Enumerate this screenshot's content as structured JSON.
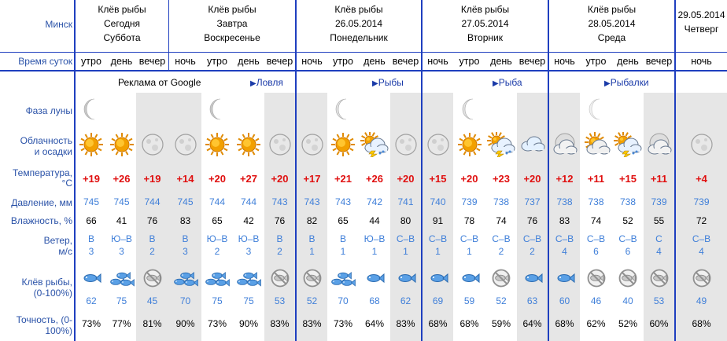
{
  "row_labels": {
    "city": "Минск",
    "time_of_day": "Время суток",
    "moon": "Фаза луны",
    "clouds_l1": "Облачность",
    "clouds_l2": "и осадки",
    "temp_l1": "Температура,",
    "temp_l2": "°C",
    "pressure": "Давление, мм",
    "humidity": "Влажность, %",
    "wind_l1": "Ветер,",
    "wind_l2": "м/с",
    "bite_l1": "Клёв рыбы,",
    "bite_l2": "(0-100%)",
    "acc_l1": "Точность, (0-",
    "acc_l2": "100%)"
  },
  "days": [
    {
      "l1": "Клёв рыбы",
      "l2": "Сегодня",
      "l3": "Суббота"
    },
    {
      "l1": "Клёв рыбы",
      "l2": "Завтра",
      "l3": "Воскресенье"
    },
    {
      "l1": "Клёв рыбы",
      "l2": "26.05.2014",
      "l3": "Понедельник"
    },
    {
      "l1": "Клёв рыбы",
      "l2": "27.05.2014",
      "l3": "Вторник"
    },
    {
      "l1": "Клёв рыбы",
      "l2": "28.05.2014",
      "l3": "Среда"
    },
    {
      "l1": "29.05.2014",
      "l2": "Четверг",
      "l3": ""
    }
  ],
  "ads": {
    "google": "Реклама от Google",
    "link1": "Ловля",
    "link2": "Рыбы",
    "link3": "Рыба",
    "link4": "Рыбалки"
  },
  "colors": {
    "label_blue": "#2a52a8",
    "grid_blue": "#1f3fbf",
    "temp_red": "#e01010",
    "pressure_blue": "#3f7fd9",
    "grey_column": "#e6e6e6"
  },
  "columns": [
    {
      "time": "утро",
      "weather": "sun",
      "temp": "+19",
      "pressure": "745",
      "humidity": "66",
      "wind_dir": "В",
      "wind_speed": "3",
      "fish": "one",
      "bite": "62",
      "acc": "73%",
      "moon": "crescent"
    },
    {
      "time": "день",
      "weather": "sun",
      "temp": "+26",
      "pressure": "745",
      "humidity": "41",
      "wind_dir": "Ю–В",
      "wind_speed": "3",
      "fish": "three",
      "bite": "75",
      "acc": "77%",
      "moon": ""
    },
    {
      "time": "вечер",
      "weather": "moon",
      "temp": "+19",
      "pressure": "744",
      "humidity": "76",
      "wind_dir": "В",
      "wind_speed": "2",
      "fish": "none",
      "bite": "45",
      "acc": "81%",
      "moon": ""
    },
    {
      "time": "ночь",
      "weather": "moon",
      "temp": "+14",
      "pressure": "745",
      "humidity": "83",
      "wind_dir": "В",
      "wind_speed": "3",
      "fish": "three",
      "bite": "70",
      "acc": "90%",
      "moon": ""
    },
    {
      "time": "утро",
      "weather": "sun",
      "temp": "+20",
      "pressure": "744",
      "humidity": "65",
      "wind_dir": "Ю–В",
      "wind_speed": "2",
      "fish": "three",
      "bite": "75",
      "acc": "73%",
      "moon": "crescent"
    },
    {
      "time": "день",
      "weather": "sun",
      "temp": "+27",
      "pressure": "744",
      "humidity": "42",
      "wind_dir": "Ю–В",
      "wind_speed": "3",
      "fish": "three",
      "bite": "75",
      "acc": "90%",
      "moon": ""
    },
    {
      "time": "вечер",
      "weather": "moon",
      "temp": "+20",
      "pressure": "743",
      "humidity": "76",
      "wind_dir": "В",
      "wind_speed": "2",
      "fish": "none",
      "bite": "53",
      "acc": "83%",
      "moon": ""
    },
    {
      "time": "ночь",
      "weather": "moon",
      "temp": "+17",
      "pressure": "743",
      "humidity": "82",
      "wind_dir": "В",
      "wind_speed": "1",
      "fish": "none",
      "bite": "52",
      "acc": "83%",
      "moon": ""
    },
    {
      "time": "утро",
      "weather": "sun",
      "temp": "+21",
      "pressure": "743",
      "humidity": "65",
      "wind_dir": "В",
      "wind_speed": "1",
      "fish": "three",
      "bite": "70",
      "acc": "73%",
      "moon": "thin"
    },
    {
      "time": "день",
      "weather": "storm",
      "temp": "+26",
      "pressure": "742",
      "humidity": "44",
      "wind_dir": "Ю–В",
      "wind_speed": "1",
      "fish": "one",
      "bite": "68",
      "acc": "64%",
      "moon": ""
    },
    {
      "time": "вечер",
      "weather": "moon",
      "temp": "+20",
      "pressure": "741",
      "humidity": "80",
      "wind_dir": "С–В",
      "wind_speed": "1",
      "fish": "one",
      "bite": "62",
      "acc": "83%",
      "moon": ""
    },
    {
      "time": "ночь",
      "weather": "moon",
      "temp": "+15",
      "pressure": "740",
      "humidity": "91",
      "wind_dir": "С–В",
      "wind_speed": "1",
      "fish": "one",
      "bite": "69",
      "acc": "68%",
      "moon": ""
    },
    {
      "time": "утро",
      "weather": "sun",
      "temp": "+20",
      "pressure": "739",
      "humidity": "78",
      "wind_dir": "С–В",
      "wind_speed": "1",
      "fish": "one",
      "bite": "59",
      "acc": "68%",
      "moon": "thin"
    },
    {
      "time": "день",
      "weather": "storm",
      "temp": "+23",
      "pressure": "738",
      "humidity": "74",
      "wind_dir": "С–В",
      "wind_speed": "2",
      "fish": "none",
      "bite": "52",
      "acc": "59%",
      "moon": ""
    },
    {
      "time": "вечер",
      "weather": "cloud",
      "temp": "+20",
      "pressure": "737",
      "humidity": "76",
      "wind_dir": "С–В",
      "wind_speed": "2",
      "fish": "one",
      "bite": "63",
      "acc": "64%",
      "moon": ""
    },
    {
      "time": "ночь",
      "weather": "cloudmoon",
      "temp": "+12",
      "pressure": "738",
      "humidity": "83",
      "wind_dir": "С–В",
      "wind_speed": "4",
      "fish": "one",
      "bite": "60",
      "acc": "68%",
      "moon": ""
    },
    {
      "time": "утро",
      "weather": "cloudsun",
      "temp": "+11",
      "pressure": "738",
      "humidity": "74",
      "wind_dir": "С–В",
      "wind_speed": "6",
      "fish": "none",
      "bite": "46",
      "acc": "62%",
      "moon": "faint"
    },
    {
      "time": "день",
      "weather": "storm",
      "temp": "+15",
      "pressure": "738",
      "humidity": "52",
      "wind_dir": "С–В",
      "wind_speed": "6",
      "fish": "none",
      "bite": "40",
      "acc": "52%",
      "moon": ""
    },
    {
      "time": "вечер",
      "weather": "cloudmoon",
      "temp": "+11",
      "pressure": "739",
      "humidity": "55",
      "wind_dir": "С",
      "wind_speed": "4",
      "fish": "none",
      "bite": "53",
      "acc": "60%",
      "moon": ""
    },
    {
      "time": "ночь",
      "weather": "moon",
      "temp": "+4",
      "pressure": "739",
      "humidity": "72",
      "wind_dir": "С–В",
      "wind_speed": "4",
      "fish": "none",
      "bite": "49",
      "acc": "68%",
      "moon": ""
    }
  ]
}
